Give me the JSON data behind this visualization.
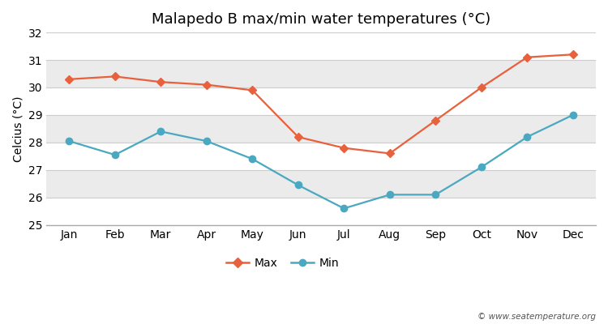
{
  "title": "Malapedo B max/min water temperatures (°C)",
  "ylabel": "Celcius (°C)",
  "months": [
    "Jan",
    "Feb",
    "Mar",
    "Apr",
    "May",
    "Jun",
    "Jul",
    "Aug",
    "Sep",
    "Oct",
    "Nov",
    "Dec"
  ],
  "max_temps": [
    30.3,
    30.4,
    30.2,
    30.1,
    29.9,
    28.2,
    27.8,
    27.6,
    28.8,
    30.0,
    31.1,
    31.2
  ],
  "min_temps": [
    28.05,
    27.55,
    28.4,
    28.05,
    27.4,
    26.45,
    25.6,
    26.1,
    26.1,
    27.1,
    28.2,
    29.0
  ],
  "max_color": "#E8603C",
  "min_color": "#4AA8C0",
  "figure_bg": "#ffffff",
  "plot_bg": "#ffffff",
  "band_color_light": "#ebebeb",
  "band_color_white": "#ffffff",
  "ylim": [
    25,
    32
  ],
  "yticks": [
    25,
    26,
    27,
    28,
    29,
    30,
    31,
    32
  ],
  "legend_labels": [
    "Max",
    "Min"
  ],
  "watermark": "© www.seatemperature.org",
  "title_fontsize": 13,
  "axis_fontsize": 10,
  "tick_fontsize": 10
}
